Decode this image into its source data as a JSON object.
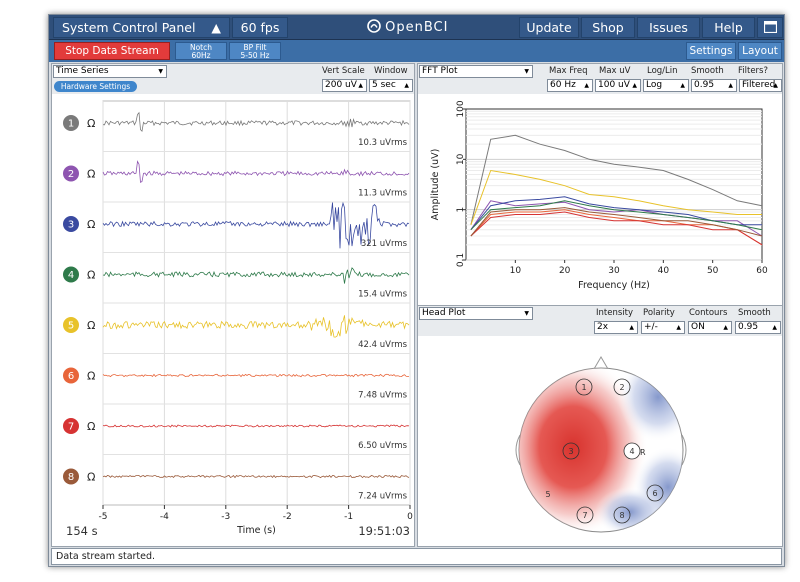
{
  "topbar": {
    "control_panel_label": "System Control Panel",
    "control_panel_arrow": "▲",
    "fps_label": "60 fps",
    "logo_text": "OpenBCI",
    "update_label": "Update",
    "shop_label": "Shop",
    "issues_label": "Issues",
    "help_label": "Help",
    "window_icon": "window-icon"
  },
  "toolbar": {
    "stop_label": "Stop Data Stream",
    "notch_line1": "Notch",
    "notch_line2": "60Hz",
    "bp_line1": "BP Filt",
    "bp_line2": "5-50 Hz",
    "settings_label": "Settings",
    "layout_label": "Layout"
  },
  "timeseries": {
    "title": "Time Series",
    "vert_scale_label": "Vert Scale",
    "window_label": "Window",
    "vert_scale_value": "200 uV",
    "window_value": "5 sec",
    "hardware_settings_label": "Hardware Settings",
    "ohm_symbol": "Ω",
    "channels": [
      {
        "num": "1",
        "color": "#7a7a7a",
        "rms": "10.3 uVrms"
      },
      {
        "num": "2",
        "color": "#8e55b0",
        "rms": "11.3 uVrms"
      },
      {
        "num": "3",
        "color": "#3a4aa0",
        "rms": "321 uVrms"
      },
      {
        "num": "4",
        "color": "#2e7a4a",
        "rms": "15.4 uVrms"
      },
      {
        "num": "5",
        "color": "#e8c22a",
        "rms": "42.4 uVrms"
      },
      {
        "num": "6",
        "color": "#e8653a",
        "rms": "7.48 uVrms"
      },
      {
        "num": "7",
        "color": "#d63333",
        "rms": "6.50 uVrms"
      },
      {
        "num": "8",
        "color": "#9a5a3a",
        "rms": "7.24 uVrms"
      }
    ],
    "x_ticks": [
      "-5",
      "-4",
      "-3",
      "-2",
      "-1",
      "0"
    ],
    "x_label": "Time (s)",
    "elapsed": "154 s",
    "clock": "19:51:03"
  },
  "fft": {
    "title": "FFT Plot",
    "max_freq_label": "Max Freq",
    "max_uv_label": "Max uV",
    "loglin_label": "Log/Lin",
    "smooth_label": "Smooth",
    "filters_label": "Filters?",
    "max_freq_value": "60 Hz",
    "max_uv_value": "100 uV",
    "loglin_value": "Log",
    "smooth_value": "0.95",
    "filters_value": "Filtered",
    "y_label": "Amplitude (uV)",
    "x_label": "Frequency (Hz)",
    "y_ticks": [
      "100",
      "10",
      "1",
      "0.1"
    ],
    "x_ticks": [
      "10",
      "20",
      "30",
      "40",
      "50",
      "60"
    ]
  },
  "headplot": {
    "title": "Head Plot",
    "intensity_label": "Intensity",
    "polarity_label": "Polarity",
    "contours_label": "Contours",
    "smooth_label": "Smooth",
    "intensity_value": "2x",
    "polarity_value": "+/-",
    "contours_value": "ON",
    "smooth_value": "0.95",
    "electrodes": [
      "1",
      "2",
      "3",
      "4",
      "5",
      "6",
      "7",
      "8"
    ],
    "ref_label": "R"
  },
  "status": {
    "message": "Data stream started."
  },
  "chart_data": {
    "type": "line",
    "title": "",
    "xlabel": "Frequency (Hz)",
    "ylabel": "Amplitude (uV)",
    "xlim": [
      0,
      60
    ],
    "ylim": [
      0.1,
      100
    ],
    "y_scale": "log",
    "grid": true,
    "x": [
      1,
      5,
      10,
      15,
      20,
      25,
      30,
      35,
      40,
      45,
      50,
      55,
      60
    ],
    "series": [
      {
        "color": "#7a7a7a",
        "values": [
          0.5,
          25,
          30,
          20,
          15,
          10,
          8,
          7,
          6,
          4,
          2.5,
          1.5,
          1.2
        ]
      },
      {
        "color": "#8e55b0",
        "values": [
          0.4,
          1.5,
          1.2,
          1.3,
          1.4,
          1.0,
          0.9,
          1.0,
          0.8,
          0.7,
          0.6,
          0.6,
          0.3
        ]
      },
      {
        "color": "#3a4aa0",
        "values": [
          0.4,
          1.2,
          1.5,
          1.6,
          1.8,
          1.3,
          1.1,
          1.0,
          0.9,
          0.8,
          0.6,
          0.5,
          0.5
        ]
      },
      {
        "color": "#2e7a4a",
        "values": [
          0.4,
          1.0,
          1.1,
          1.2,
          1.5,
          1.2,
          1.0,
          0.9,
          0.8,
          0.7,
          0.6,
          0.5,
          0.4
        ]
      },
      {
        "color": "#e8c22a",
        "values": [
          0.5,
          6,
          5,
          4,
          3,
          2,
          1.8,
          1.5,
          1.2,
          1.0,
          0.9,
          0.8,
          0.8
        ]
      },
      {
        "color": "#e8653a",
        "values": [
          0.3,
          0.8,
          0.9,
          0.9,
          1.0,
          0.8,
          0.7,
          0.6,
          0.6,
          0.5,
          0.5,
          0.4,
          0.2
        ]
      },
      {
        "color": "#d63333",
        "values": [
          0.3,
          0.7,
          0.8,
          0.8,
          0.9,
          0.7,
          0.6,
          0.6,
          0.5,
          0.5,
          0.4,
          0.4,
          0.2
        ]
      },
      {
        "color": "#9a5a3a",
        "values": [
          0.3,
          0.9,
          1.0,
          1.0,
          1.1,
          0.9,
          0.8,
          0.7,
          0.6,
          0.6,
          0.5,
          0.4,
          0.3
        ]
      }
    ]
  }
}
